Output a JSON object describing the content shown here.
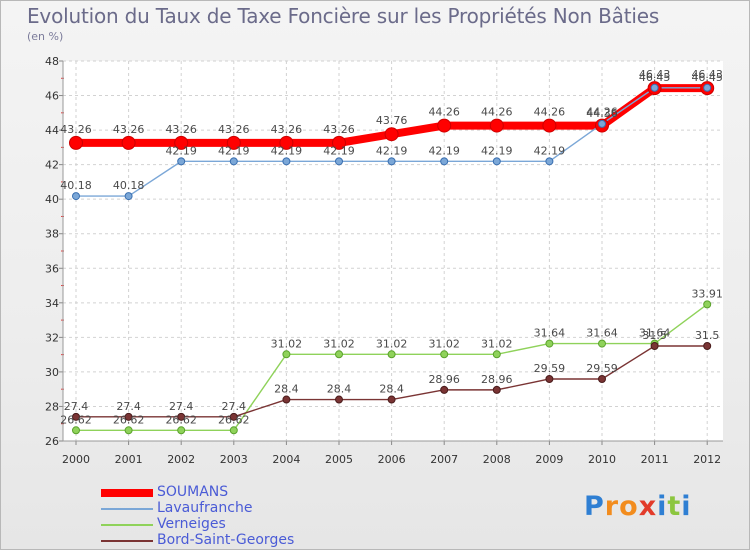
{
  "chart_data": {
    "type": "line",
    "title": "Evolution du Taux de Taxe Foncière sur les Propriétés Non Bâties",
    "subtitle": "(en %)",
    "xlabel": "",
    "ylabel": "",
    "ylim": [
      26,
      48
    ],
    "yticks": [
      26,
      28,
      30,
      32,
      34,
      36,
      38,
      40,
      42,
      44,
      46,
      48
    ],
    "categories": [
      "2000",
      "2001",
      "2002",
      "2003",
      "2004",
      "2005",
      "2006",
      "2007",
      "2008",
      "2009",
      "2010",
      "2011",
      "2012"
    ],
    "grid": "dashed",
    "legend_position": "bottom-left",
    "series": [
      {
        "name": "SOUMANS",
        "color": "#ff0000",
        "values": [
          43.26,
          43.26,
          43.26,
          43.26,
          43.26,
          43.26,
          43.76,
          44.26,
          44.26,
          44.26,
          44.26,
          46.43,
          46.43
        ],
        "labels": [
          "43.26",
          "43.26",
          "43.26",
          "43.26",
          "43.26",
          "43.26",
          "43.76",
          "44.26",
          "44.26",
          "44.26",
          "44.26",
          "46.43",
          "46.43"
        ]
      },
      {
        "name": "Lavaufranche",
        "color": "#7ba7d7",
        "values": [
          40.18,
          40.18,
          42.19,
          42.19,
          42.19,
          42.19,
          42.19,
          42.19,
          42.19,
          42.19,
          44.36,
          46.45,
          46.45
        ],
        "labels": [
          "40.18",
          "40.18",
          "42.19",
          "42.19",
          "42.19",
          "42.19",
          "42.19",
          "42.19",
          "42.19",
          "42.19",
          "44.36",
          "46.45",
          "46.45"
        ]
      },
      {
        "name": "Verneiges",
        "color": "#8fd25a",
        "values": [
          26.62,
          26.62,
          26.62,
          26.62,
          31.02,
          31.02,
          31.02,
          31.02,
          31.02,
          31.64,
          31.64,
          31.64,
          33.91
        ],
        "labels": [
          "26.62",
          "26.62",
          "26.62",
          "26.62",
          "31.02",
          "31.02",
          "31.02",
          "31.02",
          "31.02",
          "31.64",
          "31.64",
          "31.64",
          "33.91"
        ]
      },
      {
        "name": "Bord-Saint-Georges",
        "color": "#7a3434",
        "values": [
          27.4,
          27.4,
          27.4,
          27.4,
          28.4,
          28.4,
          28.4,
          28.96,
          28.96,
          29.59,
          29.59,
          31.5,
          31.5
        ],
        "labels": [
          "27.4",
          "27.4",
          "27.4",
          "27.4",
          "28.4",
          "28.4",
          "28.4",
          "28.96",
          "28.96",
          "29.59",
          "29.59",
          "31.5",
          "31.5"
        ]
      }
    ]
  },
  "logo": {
    "text": "Proxiti",
    "letters": [
      "P",
      "r",
      "o",
      "x",
      "i",
      "t",
      "i"
    ],
    "colors": [
      "#2f7fd3",
      "#f28c1e",
      "#f28c1e",
      "#e23b2a",
      "#2f7fd3",
      "#8cc63f",
      "#2f7fd3"
    ]
  }
}
